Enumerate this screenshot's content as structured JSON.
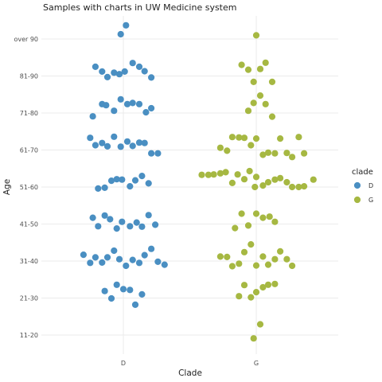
{
  "chart_data": {
    "type": "scatter",
    "title": "Samples with charts in UW Medicine system",
    "xlabel": "Clade",
    "ylabel": "Age",
    "categories": [
      "D",
      "G"
    ],
    "y_categories": [
      "11-20",
      "21-30",
      "31-40",
      "41-50",
      "51-60",
      "61-70",
      "71-80",
      "81-90",
      "over 90"
    ],
    "grid": true,
    "legend": {
      "title": "clade",
      "position": "right",
      "entries": [
        {
          "label": "D",
          "color": "#4a8fc2"
        },
        {
          "label": "G",
          "color": "#a6b842"
        }
      ]
    },
    "series": [
      {
        "name": "D",
        "color": "#4a8fc2",
        "points": [
          {
            "x": -0.02,
            "y": 9.13
          },
          {
            "x": 0.02,
            "y": 9.37
          },
          {
            "x": -0.21,
            "y": 8.25
          },
          {
            "x": -0.16,
            "y": 8.12
          },
          {
            "x": -0.12,
            "y": 7.97
          },
          {
            "x": -0.07,
            "y": 8.09
          },
          {
            "x": -0.03,
            "y": 8.05
          },
          {
            "x": 0.01,
            "y": 8.12
          },
          {
            "x": 0.07,
            "y": 8.35
          },
          {
            "x": 0.12,
            "y": 8.25
          },
          {
            "x": 0.16,
            "y": 8.13
          },
          {
            "x": 0.21,
            "y": 7.96
          },
          {
            "x": -0.23,
            "y": 6.91
          },
          {
            "x": -0.16,
            "y": 7.24
          },
          {
            "x": -0.13,
            "y": 7.21
          },
          {
            "x": -0.07,
            "y": 7.06
          },
          {
            "x": -0.02,
            "y": 7.37
          },
          {
            "x": 0.03,
            "y": 7.24
          },
          {
            "x": 0.07,
            "y": 7.27
          },
          {
            "x": 0.12,
            "y": 7.24
          },
          {
            "x": 0.17,
            "y": 7.02
          },
          {
            "x": 0.21,
            "y": 7.13
          },
          {
            "x": -0.25,
            "y": 6.33
          },
          {
            "x": -0.21,
            "y": 6.13
          },
          {
            "x": -0.16,
            "y": 6.19
          },
          {
            "x": -0.12,
            "y": 6.1
          },
          {
            "x": -0.07,
            "y": 6.36
          },
          {
            "x": -0.02,
            "y": 6.09
          },
          {
            "x": 0.03,
            "y": 6.23
          },
          {
            "x": 0.07,
            "y": 6.11
          },
          {
            "x": 0.12,
            "y": 6.2
          },
          {
            "x": 0.16,
            "y": 6.19
          },
          {
            "x": 0.21,
            "y": 5.91
          },
          {
            "x": 0.26,
            "y": 5.91
          },
          {
            "x": -0.19,
            "y": 4.96
          },
          {
            "x": -0.14,
            "y": 4.98
          },
          {
            "x": -0.09,
            "y": 5.17
          },
          {
            "x": -0.05,
            "y": 5.21
          },
          {
            "x": -0.01,
            "y": 5.2
          },
          {
            "x": 0.05,
            "y": 5.02
          },
          {
            "x": 0.09,
            "y": 5.18
          },
          {
            "x": 0.14,
            "y": 5.3
          },
          {
            "x": 0.19,
            "y": 5.1
          },
          {
            "x": -0.23,
            "y": 4.17
          },
          {
            "x": -0.19,
            "y": 3.94
          },
          {
            "x": -0.14,
            "y": 4.23
          },
          {
            "x": -0.1,
            "y": 4.13
          },
          {
            "x": -0.05,
            "y": 3.88
          },
          {
            "x": -0.01,
            "y": 4.06
          },
          {
            "x": 0.05,
            "y": 3.94
          },
          {
            "x": 0.1,
            "y": 4.04
          },
          {
            "x": 0.14,
            "y": 3.93
          },
          {
            "x": 0.19,
            "y": 4.24
          },
          {
            "x": 0.24,
            "y": 3.98
          },
          {
            "x": -0.3,
            "y": 3.17
          },
          {
            "x": -0.25,
            "y": 2.95
          },
          {
            "x": -0.21,
            "y": 3.1
          },
          {
            "x": -0.16,
            "y": 2.96
          },
          {
            "x": -0.12,
            "y": 3.1
          },
          {
            "x": -0.07,
            "y": 3.28
          },
          {
            "x": -0.03,
            "y": 3.05
          },
          {
            "x": 0.02,
            "y": 2.87
          },
          {
            "x": 0.07,
            "y": 3.03
          },
          {
            "x": 0.12,
            "y": 2.95
          },
          {
            "x": 0.16,
            "y": 3.16
          },
          {
            "x": 0.21,
            "y": 3.33
          },
          {
            "x": 0.26,
            "y": 2.98
          },
          {
            "x": 0.31,
            "y": 2.9
          },
          {
            "x": -0.14,
            "y": 2.19
          },
          {
            "x": -0.09,
            "y": 1.99
          },
          {
            "x": -0.05,
            "y": 2.36
          },
          {
            "x": 0.0,
            "y": 2.24
          },
          {
            "x": 0.05,
            "y": 2.22
          },
          {
            "x": 0.09,
            "y": 1.82
          },
          {
            "x": 0.14,
            "y": 2.1
          }
        ]
      },
      {
        "name": "G",
        "color": "#a6b842",
        "points": [
          {
            "x": 1.0,
            "y": 9.1
          },
          {
            "x": 0.89,
            "y": 8.3
          },
          {
            "x": 0.94,
            "y": 8.17
          },
          {
            "x": 0.98,
            "y": 7.84
          },
          {
            "x": 1.03,
            "y": 8.19
          },
          {
            "x": 1.07,
            "y": 8.36
          },
          {
            "x": 1.12,
            "y": 7.84
          },
          {
            "x": 0.94,
            "y": 7.06
          },
          {
            "x": 0.98,
            "y": 7.27
          },
          {
            "x": 1.03,
            "y": 7.47
          },
          {
            "x": 1.07,
            "y": 7.24
          },
          {
            "x": 1.12,
            "y": 6.9
          },
          {
            "x": 0.73,
            "y": 6.06
          },
          {
            "x": 0.78,
            "y": 5.98
          },
          {
            "x": 0.82,
            "y": 6.35
          },
          {
            "x": 0.87,
            "y": 6.34
          },
          {
            "x": 0.91,
            "y": 6.33
          },
          {
            "x": 0.96,
            "y": 6.13
          },
          {
            "x": 1.0,
            "y": 6.31
          },
          {
            "x": 1.05,
            "y": 5.87
          },
          {
            "x": 1.09,
            "y": 5.93
          },
          {
            "x": 1.14,
            "y": 5.91
          },
          {
            "x": 1.18,
            "y": 6.31
          },
          {
            "x": 1.23,
            "y": 5.92
          },
          {
            "x": 1.27,
            "y": 5.81
          },
          {
            "x": 1.32,
            "y": 6.35
          },
          {
            "x": 1.36,
            "y": 5.91
          },
          {
            "x": 0.59,
            "y": 5.33
          },
          {
            "x": 0.64,
            "y": 5.33
          },
          {
            "x": 0.68,
            "y": 5.34
          },
          {
            "x": 0.73,
            "y": 5.37
          },
          {
            "x": 0.77,
            "y": 5.4
          },
          {
            "x": 0.82,
            "y": 5.11
          },
          {
            "x": 0.86,
            "y": 5.34
          },
          {
            "x": 0.91,
            "y": 5.21
          },
          {
            "x": 0.95,
            "y": 5.43
          },
          {
            "x": 0.99,
            "y": 5.0
          },
          {
            "x": 1.0,
            "y": 5.27
          },
          {
            "x": 1.05,
            "y": 5.04
          },
          {
            "x": 1.09,
            "y": 5.13
          },
          {
            "x": 1.14,
            "y": 5.2
          },
          {
            "x": 1.18,
            "y": 5.24
          },
          {
            "x": 1.23,
            "y": 5.13
          },
          {
            "x": 1.27,
            "y": 5.0
          },
          {
            "x": 1.32,
            "y": 5.0
          },
          {
            "x": 1.36,
            "y": 5.02
          },
          {
            "x": 1.43,
            "y": 5.2
          },
          {
            "x": 0.84,
            "y": 3.89
          },
          {
            "x": 0.89,
            "y": 4.28
          },
          {
            "x": 0.94,
            "y": 3.96
          },
          {
            "x": 1.0,
            "y": 4.28
          },
          {
            "x": 1.05,
            "y": 4.17
          },
          {
            "x": 1.1,
            "y": 4.2
          },
          {
            "x": 1.14,
            "y": 4.06
          },
          {
            "x": 0.73,
            "y": 3.12
          },
          {
            "x": 0.78,
            "y": 3.11
          },
          {
            "x": 0.82,
            "y": 2.86
          },
          {
            "x": 0.87,
            "y": 2.93
          },
          {
            "x": 0.91,
            "y": 3.24
          },
          {
            "x": 0.96,
            "y": 3.45
          },
          {
            "x": 1.0,
            "y": 2.88
          },
          {
            "x": 1.05,
            "y": 3.12
          },
          {
            "x": 1.09,
            "y": 2.9
          },
          {
            "x": 1.14,
            "y": 3.05
          },
          {
            "x": 1.18,
            "y": 3.26
          },
          {
            "x": 1.23,
            "y": 3.05
          },
          {
            "x": 1.27,
            "y": 2.87
          },
          {
            "x": 0.87,
            "y": 2.05
          },
          {
            "x": 0.91,
            "y": 2.35
          },
          {
            "x": 0.96,
            "y": 2.02
          },
          {
            "x": 1.0,
            "y": 2.16
          },
          {
            "x": 1.05,
            "y": 2.29
          },
          {
            "x": 1.09,
            "y": 2.36
          },
          {
            "x": 1.14,
            "y": 2.38
          },
          {
            "x": 1.03,
            "y": 1.29
          },
          {
            "x": 0.98,
            "y": 0.91
          }
        ]
      }
    ]
  }
}
